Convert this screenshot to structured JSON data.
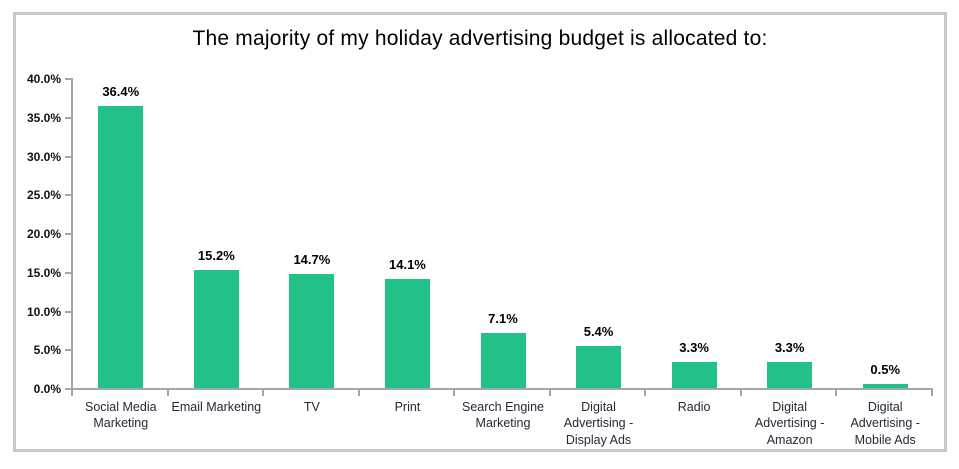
{
  "chart_data": {
    "type": "bar",
    "title": "The majority of my holiday advertising budget is allocated to:",
    "categories": [
      "Social Media Marketing",
      "Email Marketing",
      "TV",
      "Print",
      "Search Engine Marketing",
      "Digital Advertising - Display Ads",
      "Radio",
      "Digital Advertising - Amazon",
      "Digital Advertising - Mobile Ads"
    ],
    "values": [
      36.4,
      15.2,
      14.7,
      14.1,
      7.1,
      5.4,
      3.3,
      3.3,
      0.5
    ],
    "value_labels": [
      "36.4%",
      "15.2%",
      "14.7%",
      "14.1%",
      "7.1%",
      "5.4%",
      "3.3%",
      "3.3%",
      "0.5%"
    ],
    "xlabel": "",
    "ylabel": "",
    "ylim": [
      0,
      40
    ],
    "ytick_step": 5,
    "ytick_labels": [
      "0.0%",
      "5.0%",
      "10.0%",
      "15.0%",
      "20.0%",
      "25.0%",
      "30.0%",
      "35.0%",
      "40.0%"
    ],
    "grid": false,
    "legend": "none",
    "colors": {
      "bar": "#21c187",
      "axis": "#a6a6a6",
      "category_label": "#222a35",
      "value_label": "#000000",
      "title": "#000000",
      "frame_border": "#c9c9c9",
      "background": "#ffffff"
    }
  }
}
